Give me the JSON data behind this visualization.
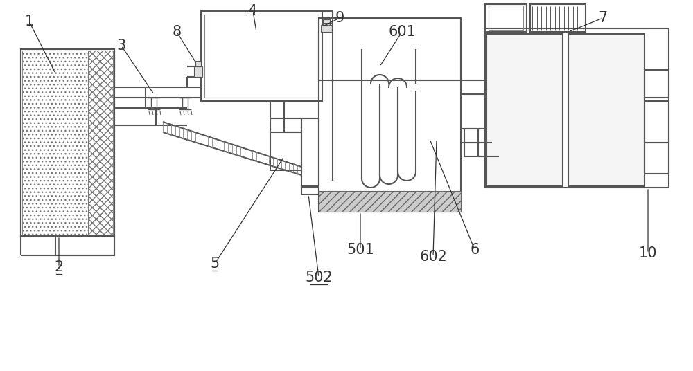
{
  "bg_color": "#ffffff",
  "line_color": "#555555",
  "label_color": "#333333",
  "fig_w": 10.0,
  "fig_h": 5.36,
  "dpi": 100
}
